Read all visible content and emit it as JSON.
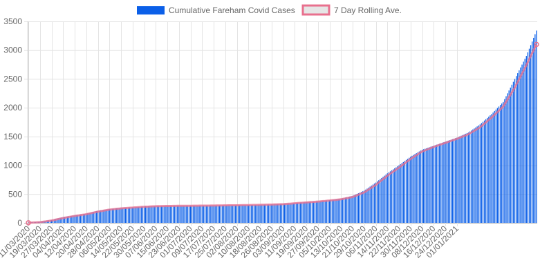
{
  "chart_data": {
    "type": "bar",
    "title": "",
    "xlabel": "",
    "ylabel": "",
    "ylim": [
      0,
      3500
    ],
    "y_ticks": [
      0,
      500,
      1000,
      1500,
      2000,
      2500,
      3000,
      3500
    ],
    "grid": true,
    "legend_placement": "top-center",
    "x_tick_labels": [
      "11/03/2020",
      "19/03/2020",
      "27/03/2020",
      "04/04/2020",
      "12/04/2020",
      "20/04/2020",
      "28/04/2020",
      "06/05/2020",
      "14/05/2020",
      "22/05/2020",
      "30/05/2020",
      "07/06/2020",
      "15/06/2020",
      "23/06/2020",
      "01/07/2020",
      "09/07/2020",
      "17/07/2020",
      "25/07/2020",
      "02/08/2020",
      "10/08/2020",
      "18/08/2020",
      "26/08/2020",
      "03/09/2020",
      "11/09/2020",
      "19/09/2020",
      "27/09/2020",
      "05/10/2020",
      "13/10/2020",
      "21/10/2020",
      "29/10/2020",
      "06/11/2020",
      "14/11/2020",
      "22/11/2020",
      "30/11/2020",
      "08/12/2020",
      "16/12/2020",
      "24/12/2020",
      "01/01/2021"
    ],
    "series": [
      {
        "name": "Cumulative Fareham Covid Cases",
        "kind": "bar",
        "color": "#0b5fe8",
        "anchors": [
          [
            0,
            5
          ],
          [
            8,
            20
          ],
          [
            16,
            50
          ],
          [
            24,
            100
          ],
          [
            32,
            130
          ],
          [
            40,
            160
          ],
          [
            48,
            210
          ],
          [
            56,
            240
          ],
          [
            64,
            260
          ],
          [
            72,
            270
          ],
          [
            80,
            285
          ],
          [
            88,
            292
          ],
          [
            96,
            295
          ],
          [
            104,
            297
          ],
          [
            112,
            298
          ],
          [
            120,
            300
          ],
          [
            128,
            303
          ],
          [
            136,
            306
          ],
          [
            144,
            308
          ],
          [
            152,
            310
          ],
          [
            160,
            315
          ],
          [
            168,
            320
          ],
          [
            176,
            330
          ],
          [
            184,
            345
          ],
          [
            192,
            360
          ],
          [
            200,
            375
          ],
          [
            208,
            395
          ],
          [
            216,
            420
          ],
          [
            224,
            470
          ],
          [
            232,
            560
          ],
          [
            240,
            700
          ],
          [
            248,
            860
          ],
          [
            256,
            1000
          ],
          [
            264,
            1150
          ],
          [
            272,
            1270
          ],
          [
            280,
            1340
          ],
          [
            288,
            1410
          ],
          [
            296,
            1480
          ],
          [
            304,
            1570
          ],
          [
            312,
            1710
          ],
          [
            320,
            1890
          ],
          [
            328,
            2100
          ],
          [
            336,
            2500
          ],
          [
            344,
            2900
          ],
          [
            348,
            3150
          ],
          [
            351,
            3340
          ]
        ]
      },
      {
        "name": "7 Day Rolling Ave.",
        "kind": "line",
        "color": "#e8708e",
        "fill": "#e6e6e6",
        "anchors": [
          [
            0,
            2
          ],
          [
            8,
            12
          ],
          [
            16,
            40
          ],
          [
            24,
            85
          ],
          [
            32,
            120
          ],
          [
            40,
            150
          ],
          [
            48,
            195
          ],
          [
            56,
            230
          ],
          [
            64,
            252
          ],
          [
            72,
            266
          ],
          [
            80,
            280
          ],
          [
            88,
            289
          ],
          [
            96,
            293
          ],
          [
            104,
            296
          ],
          [
            112,
            297
          ],
          [
            120,
            299
          ],
          [
            128,
            301
          ],
          [
            136,
            304
          ],
          [
            144,
            306
          ],
          [
            152,
            309
          ],
          [
            160,
            313
          ],
          [
            168,
            318
          ],
          [
            176,
            325
          ],
          [
            184,
            340
          ],
          [
            192,
            355
          ],
          [
            200,
            370
          ],
          [
            208,
            388
          ],
          [
            216,
            410
          ],
          [
            224,
            450
          ],
          [
            232,
            530
          ],
          [
            240,
            660
          ],
          [
            248,
            820
          ],
          [
            256,
            960
          ],
          [
            264,
            1110
          ],
          [
            272,
            1240
          ],
          [
            280,
            1320
          ],
          [
            288,
            1390
          ],
          [
            296,
            1460
          ],
          [
            304,
            1540
          ],
          [
            312,
            1660
          ],
          [
            320,
            1830
          ],
          [
            328,
            2020
          ],
          [
            336,
            2350
          ],
          [
            344,
            2740
          ],
          [
            348,
            2950
          ],
          [
            351,
            3100
          ]
        ]
      }
    ]
  }
}
